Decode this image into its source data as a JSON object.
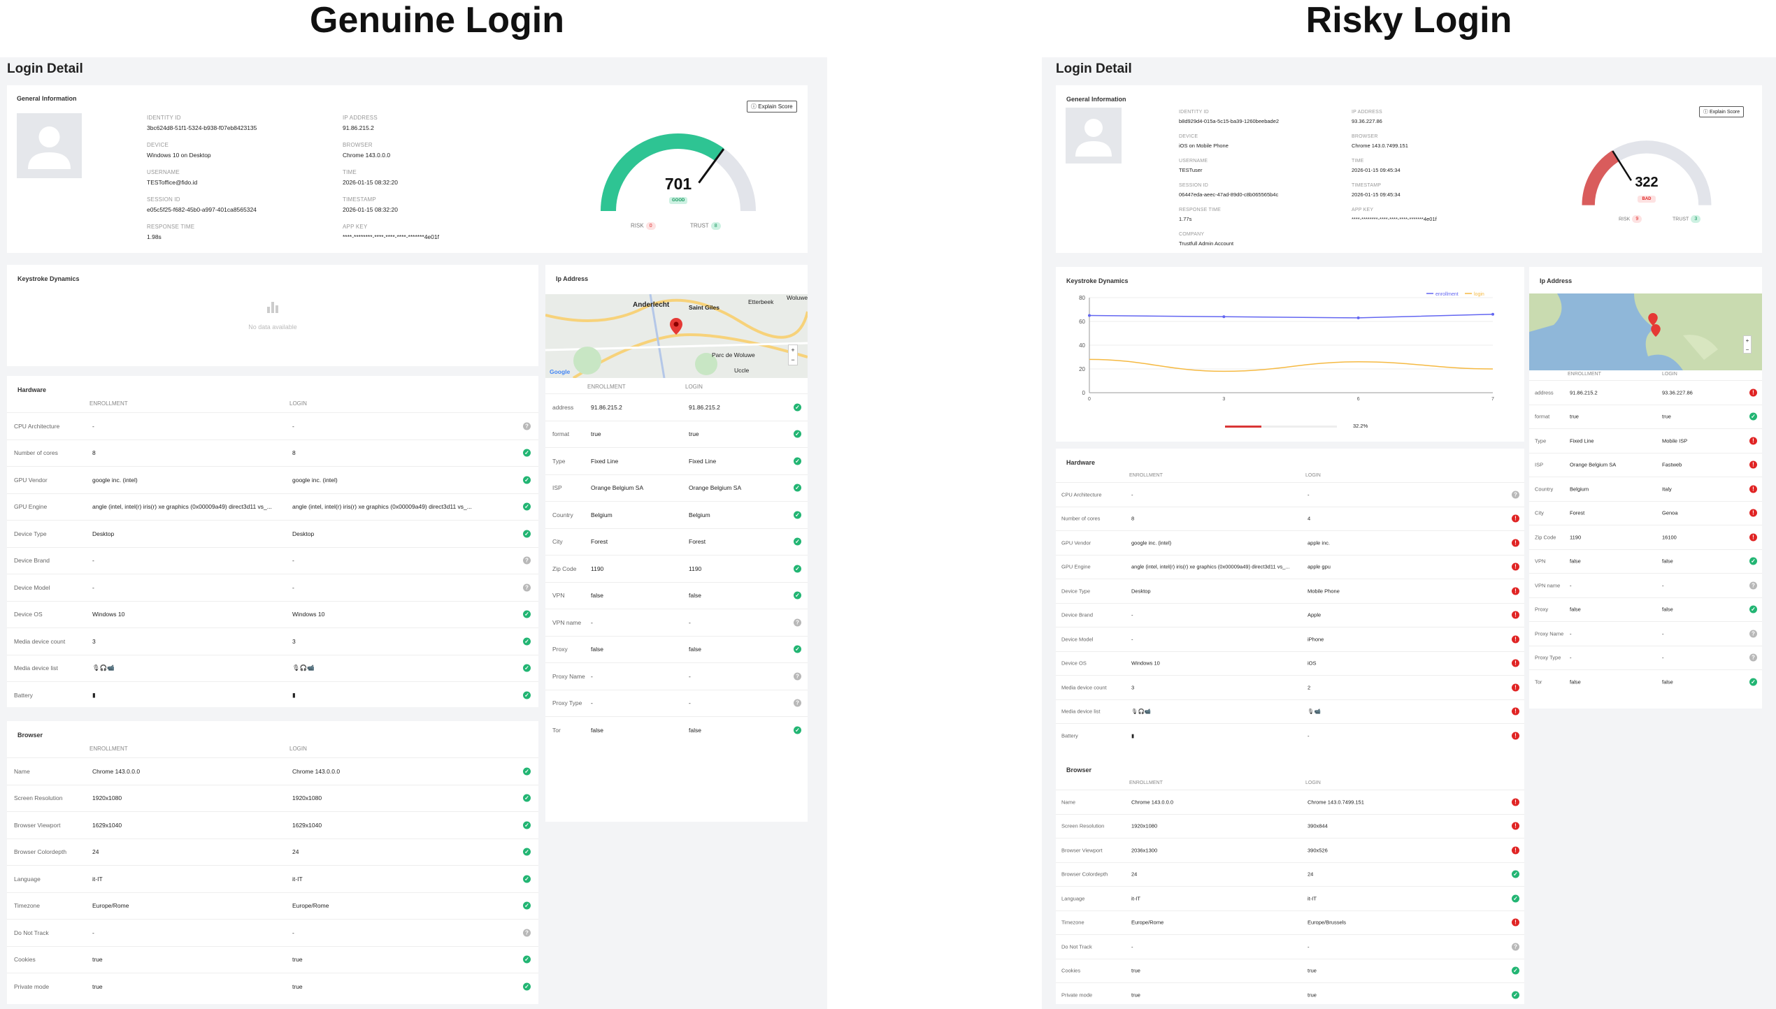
{
  "titles": {
    "left": "Genuine Login",
    "right": "Risky Login"
  },
  "colors": {
    "ok": "#22b573",
    "bad": "#e02424",
    "unknown": "#b8b8b8",
    "good_gauge": "#2ec493",
    "bad_gauge": "#d95c5c",
    "enrollment_line": "#6366f1",
    "login_line": "#f5b942"
  },
  "common": {
    "page_title": "Login Detail",
    "general_info": "General Information",
    "explain_score": "Explain Score",
    "keystroke": "Keystroke Dynamics",
    "ip_address": "Ip Address",
    "hardware": "Hardware",
    "browser": "Browser",
    "col_enrollment": "ENROLLMENT",
    "col_login": "LOGIN",
    "risk": "RISK",
    "trust": "TRUST",
    "no_data": "No data available",
    "lbl_identity": "IDENTITY ID",
    "lbl_device": "DEVICE",
    "lbl_username": "USERNAME",
    "lbl_session": "SESSION ID",
    "lbl_response": "RESPONSE TIME",
    "lbl_ip": "IP ADDRESS",
    "lbl_browser": "BROWSER",
    "lbl_time": "TIME",
    "lbl_timestamp": "TIMESTAMP",
    "lbl_appkey": "APP KEY",
    "lbl_company": "COMPANY"
  },
  "genuine": {
    "info": {
      "identity_id": "3bc624d8-51f1-5324-b938-f07eb8423135",
      "device": "Windows 10 on Desktop",
      "username": "TESToffice@fido.id",
      "session_id": "e05c5f25-f682-45b0-a997-401ca8565324",
      "response_time": "1.98s",
      "ip_address": "91.86.215.2",
      "browser": "Chrome 143.0.0.0",
      "time": "2026-01-15 08:32:20",
      "timestamp": "2026-01-15 08:32:20",
      "app_key": "****-********-****-****-****-*******4e01f"
    },
    "score": {
      "value": "701",
      "label": "GOOD",
      "fraction": 0.701,
      "risk": "0",
      "trust": "8"
    },
    "map_labels": {
      "a": "Anderlecht",
      "b": "Saint Giles",
      "c": "Etterbeek",
      "d": "Woluwe",
      "e": "Uccle",
      "f": "Parc de Woluwe",
      "g": "Google"
    },
    "hardware": [
      {
        "k": "CPU Architecture",
        "e": "-",
        "l": "-",
        "s": "unk"
      },
      {
        "k": "Number of cores",
        "e": "8",
        "l": "8",
        "s": "ok"
      },
      {
        "k": "GPU Vendor",
        "e": "google inc. (intel)",
        "l": "google inc. (intel)",
        "s": "ok"
      },
      {
        "k": "GPU Engine",
        "e": "angle (intel, intel(r) iris(r) xe graphics (0x00009a49) direct3d11 vs_...",
        "l": "angle (intel, intel(r) iris(r) xe graphics (0x00009a49) direct3d11 vs_...",
        "s": "ok"
      },
      {
        "k": "Device Type",
        "e": "Desktop",
        "l": "Desktop",
        "s": "ok"
      },
      {
        "k": "Device Brand",
        "e": "-",
        "l": "-",
        "s": "unk"
      },
      {
        "k": "Device Model",
        "e": "-",
        "l": "-",
        "s": "unk"
      },
      {
        "k": "Device OS",
        "e": "Windows 10",
        "l": "Windows 10",
        "s": "ok"
      },
      {
        "k": "Media device count",
        "e": "3",
        "l": "3",
        "s": "ok"
      },
      {
        "k": "Media device list",
        "e": "🎙🎧📹",
        "l": "🎙🎧📹",
        "s": "ok"
      },
      {
        "k": "Battery",
        "e": "▮",
        "l": "▮",
        "s": "ok"
      }
    ],
    "browser": [
      {
        "k": "Name",
        "e": "Chrome 143.0.0.0",
        "l": "Chrome 143.0.0.0",
        "s": "ok"
      },
      {
        "k": "Screen Resolution",
        "e": "1920x1080",
        "l": "1920x1080",
        "s": "ok"
      },
      {
        "k": "Browser Viewport",
        "e": "1629x1040",
        "l": "1629x1040",
        "s": "ok"
      },
      {
        "k": "Browser Colordepth",
        "e": "24",
        "l": "24",
        "s": "ok"
      },
      {
        "k": "Language",
        "e": "it-IT",
        "l": "it-IT",
        "s": "ok"
      },
      {
        "k": "Timezone",
        "e": "Europe/Rome",
        "l": "Europe/Rome",
        "s": "ok"
      },
      {
        "k": "Do Not Track",
        "e": "-",
        "l": "-",
        "s": "unk"
      },
      {
        "k": "Cookies",
        "e": "true",
        "l": "true",
        "s": "ok"
      },
      {
        "k": "Private mode",
        "e": "true",
        "l": "true",
        "s": "ok"
      }
    ],
    "ip": [
      {
        "k": "address",
        "e": "91.86.215.2",
        "l": "91.86.215.2",
        "s": "ok"
      },
      {
        "k": "format",
        "e": "true",
        "l": "true",
        "s": "ok"
      },
      {
        "k": "Type",
        "e": "Fixed Line",
        "l": "Fixed Line",
        "s": "ok"
      },
      {
        "k": "ISP",
        "e": "Orange Belgium SA",
        "l": "Orange Belgium SA",
        "s": "ok"
      },
      {
        "k": "Country",
        "e": "Belgium",
        "l": "Belgium",
        "s": "ok"
      },
      {
        "k": "City",
        "e": "Forest",
        "l": "Forest",
        "s": "ok"
      },
      {
        "k": "Zip Code",
        "e": "1190",
        "l": "1190",
        "s": "ok"
      },
      {
        "k": "VPN",
        "e": "false",
        "l": "false",
        "s": "ok"
      },
      {
        "k": "VPN name",
        "e": "-",
        "l": "-",
        "s": "unk"
      },
      {
        "k": "Proxy",
        "e": "false",
        "l": "false",
        "s": "ok"
      },
      {
        "k": "Proxy Name",
        "e": "-",
        "l": "-",
        "s": "unk"
      },
      {
        "k": "Proxy Type",
        "e": "-",
        "l": "-",
        "s": "unk"
      },
      {
        "k": "Tor",
        "e": "false",
        "l": "false",
        "s": "ok"
      }
    ]
  },
  "risky": {
    "info": {
      "identity_id": "b8d929d4-015a-5c15-ba39-1260beebade2",
      "device": "iOS on Mobile Phone",
      "username": "TESTuser",
      "session_id": "06447eda-aeec-47ad-89d0-c8b065565b4c",
      "response_time": "1.77s",
      "company": "Trustfull Admin Account",
      "ip_address": "93.36.227.86",
      "browser": "Chrome 143.0.7499.151",
      "time": "2026-01-15 09:45:34",
      "timestamp": "2026-01-15 09:45:34",
      "app_key": "****-********-****-****-****-*******4e01f"
    },
    "score": {
      "value": "322",
      "label": "BAD",
      "fraction": 0.322,
      "risk": "9",
      "trust": "3"
    },
    "keystroke_chart": {
      "legend_enrollment": "enrollment",
      "legend_login": "login",
      "y_ticks": [
        "80",
        "60",
        "40",
        "20",
        "0"
      ],
      "x_ticks": [
        "0",
        "3",
        "6",
        "7"
      ],
      "progress_label": "32.2%",
      "progress_fraction": 0.322
    },
    "hardware": [
      {
        "k": "CPU Architecture",
        "e": "-",
        "l": "-",
        "s": "unk"
      },
      {
        "k": "Number of cores",
        "e": "8",
        "l": "4",
        "s": "bad"
      },
      {
        "k": "GPU Vendor",
        "e": "google inc. (intel)",
        "l": "apple inc.",
        "s": "bad"
      },
      {
        "k": "GPU Engine",
        "e": "angle (intel, intel(r) iris(r) xe graphics (0x00009a49) direct3d11 vs_...",
        "l": "apple gpu",
        "s": "bad"
      },
      {
        "k": "Device Type",
        "e": "Desktop",
        "l": "Mobile Phone",
        "s": "bad"
      },
      {
        "k": "Device Brand",
        "e": "-",
        "l": "Apple",
        "s": "bad"
      },
      {
        "k": "Device Model",
        "e": "-",
        "l": "iPhone",
        "s": "bad"
      },
      {
        "k": "Device OS",
        "e": "Windows 10",
        "l": "iOS",
        "s": "bad"
      },
      {
        "k": "Media device count",
        "e": "3",
        "l": "2",
        "s": "bad"
      },
      {
        "k": "Media device list",
        "e": "🎙🎧📹",
        "l": "🎙📹",
        "s": "bad"
      },
      {
        "k": "Battery",
        "e": "▮",
        "l": "-",
        "s": "bad"
      }
    ],
    "browser": [
      {
        "k": "Name",
        "e": "Chrome 143.0.0.0",
        "l": "Chrome 143.0.7499.151",
        "s": "bad"
      },
      {
        "k": "Screen Resolution",
        "e": "1920x1080",
        "l": "390x844",
        "s": "bad"
      },
      {
        "k": "Browser Viewport",
        "e": "2036x1300",
        "l": "390x526",
        "s": "bad"
      },
      {
        "k": "Browser Colordepth",
        "e": "24",
        "l": "24",
        "s": "ok"
      },
      {
        "k": "Language",
        "e": "it-IT",
        "l": "it-IT",
        "s": "ok"
      },
      {
        "k": "Timezone",
        "e": "Europe/Rome",
        "l": "Europe/Brussels",
        "s": "bad"
      },
      {
        "k": "Do Not Track",
        "e": "-",
        "l": "-",
        "s": "unk"
      },
      {
        "k": "Cookies",
        "e": "true",
        "l": "true",
        "s": "ok"
      },
      {
        "k": "Private mode",
        "e": "true",
        "l": "true",
        "s": "ok"
      }
    ],
    "ip": [
      {
        "k": "address",
        "e": "91.86.215.2",
        "l": "93.36.227.86",
        "s": "bad"
      },
      {
        "k": "format",
        "e": "true",
        "l": "true",
        "s": "ok"
      },
      {
        "k": "Type",
        "e": "Fixed Line",
        "l": "Mobile ISP",
        "s": "bad"
      },
      {
        "k": "ISP",
        "e": "Orange Belgium SA",
        "l": "Fastweb",
        "s": "bad"
      },
      {
        "k": "Country",
        "e": "Belgium",
        "l": "Italy",
        "s": "bad"
      },
      {
        "k": "City",
        "e": "Forest",
        "l": "Genoa",
        "s": "bad"
      },
      {
        "k": "Zip Code",
        "e": "1190",
        "l": "16100",
        "s": "bad"
      },
      {
        "k": "VPN",
        "e": "false",
        "l": "false",
        "s": "ok"
      },
      {
        "k": "VPN name",
        "e": "-",
        "l": "-",
        "s": "unk"
      },
      {
        "k": "Proxy",
        "e": "false",
        "l": "false",
        "s": "ok"
      },
      {
        "k": "Proxy Name",
        "e": "-",
        "l": "-",
        "s": "unk"
      },
      {
        "k": "Proxy Type",
        "e": "-",
        "l": "-",
        "s": "unk"
      },
      {
        "k": "Tor",
        "e": "false",
        "l": "false",
        "s": "ok"
      }
    ]
  }
}
